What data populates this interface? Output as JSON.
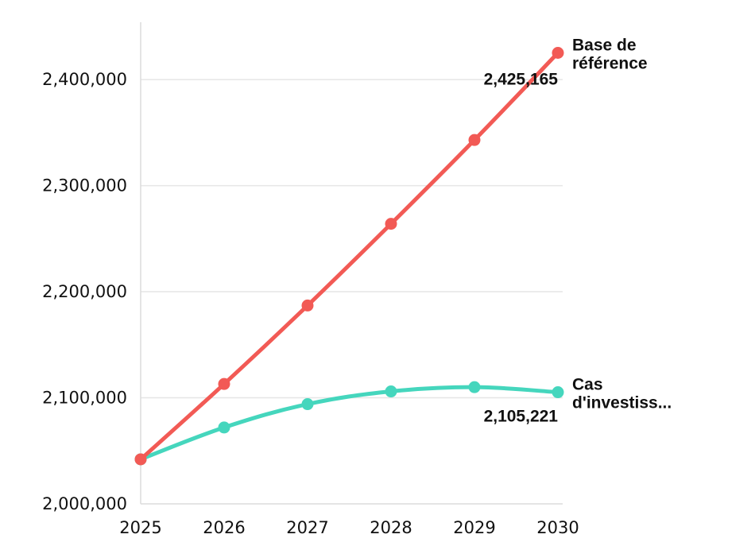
{
  "chart_data": {
    "type": "line",
    "x": [
      2025,
      2026,
      2027,
      2028,
      2029,
      2030
    ],
    "xtick_labels": [
      "2025",
      "2026",
      "2027",
      "2028",
      "2029",
      "2030"
    ],
    "ytick_values": [
      2000000,
      2100000,
      2200000,
      2300000,
      2400000
    ],
    "ytick_labels": [
      "2,000,000",
      "2,100,000",
      "2,200,000",
      "2,300,000",
      "2,400,000"
    ],
    "ylim": [
      2000000,
      2460000
    ],
    "xlim": [
      2025,
      2030
    ],
    "grid": true,
    "legend": "end-of-line labels",
    "series": [
      {
        "name_lines": [
          "Base de",
          "référence"
        ],
        "color": "#f25a55",
        "values": [
          2042000,
          2113000,
          2187000,
          2264000,
          2343000,
          2425165
        ],
        "end_label": "2,425,165"
      },
      {
        "name_lines": [
          "Cas",
          "d'investiss..."
        ],
        "color": "#45d6bd",
        "values": [
          2042000,
          2072000,
          2094000,
          2106000,
          2110000,
          2105221
        ],
        "end_label": "2,105,221"
      }
    ]
  }
}
